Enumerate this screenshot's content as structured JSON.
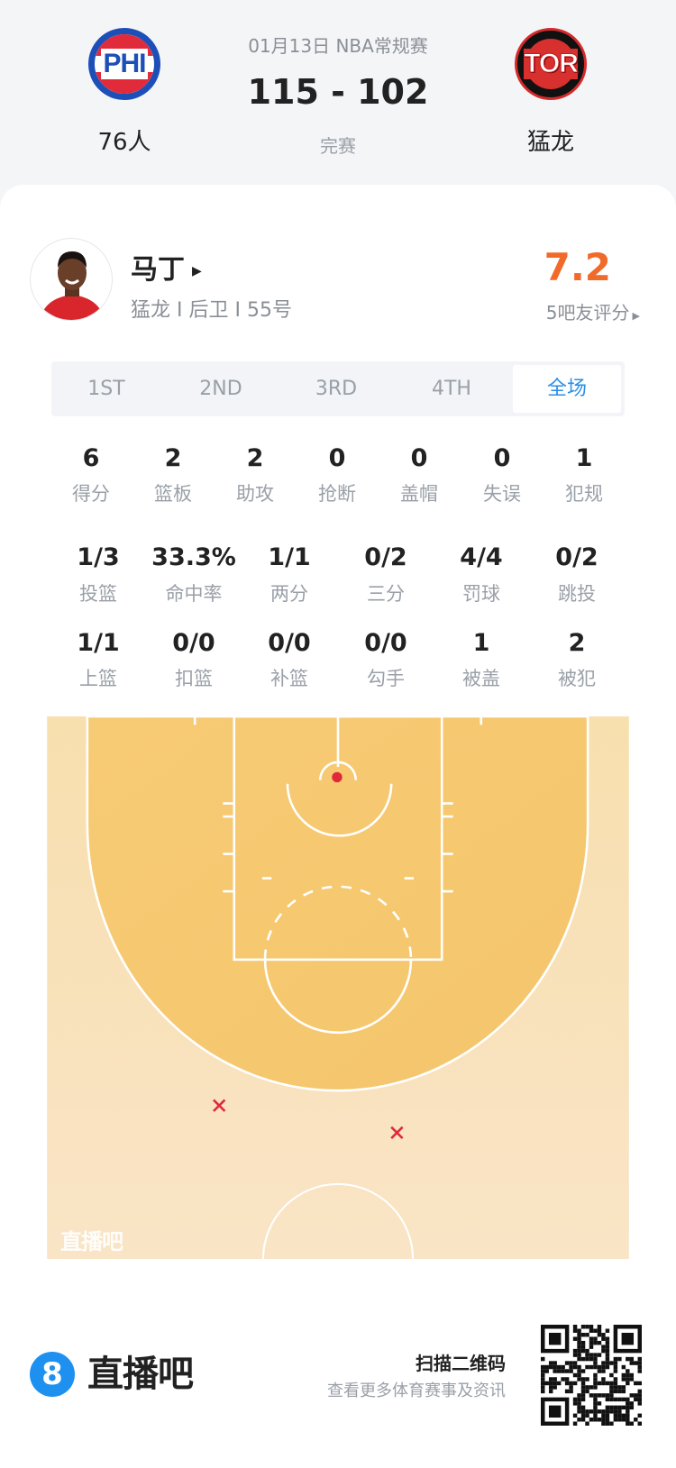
{
  "match": {
    "date_league": "01月13日 NBA常规赛",
    "score": "115 - 102",
    "status": "完赛",
    "home": {
      "abbr": "PHI",
      "name": "76人"
    },
    "away": {
      "abbr": "TOR",
      "name": "猛龙"
    }
  },
  "player": {
    "name": "马丁",
    "meta": "猛龙 I 后卫 I 55号",
    "rating": "7.2",
    "rating_label": "5吧友评分"
  },
  "colors": {
    "accent_blue": "#2b8fe6",
    "rating_orange": "#f26a2a",
    "shot_red": "#e0283a"
  },
  "tabs": [
    {
      "label": "1ST"
    },
    {
      "label": "2ND"
    },
    {
      "label": "3RD"
    },
    {
      "label": "4TH"
    },
    {
      "label": "全场",
      "active": true
    }
  ],
  "stats_row1": [
    {
      "v": "6",
      "l": "得分"
    },
    {
      "v": "2",
      "l": "篮板"
    },
    {
      "v": "2",
      "l": "助攻"
    },
    {
      "v": "0",
      "l": "抢断"
    },
    {
      "v": "0",
      "l": "盖帽"
    },
    {
      "v": "0",
      "l": "失误"
    },
    {
      "v": "1",
      "l": "犯规"
    }
  ],
  "stats_row2": [
    {
      "v": "1/3",
      "l": "投篮"
    },
    {
      "v": "33.3%",
      "l": "命中率"
    },
    {
      "v": "1/1",
      "l": "两分"
    },
    {
      "v": "0/2",
      "l": "三分"
    },
    {
      "v": "4/4",
      "l": "罚球"
    },
    {
      "v": "0/2",
      "l": "跳投"
    }
  ],
  "stats_row3": [
    {
      "v": "1/1",
      "l": "上篮"
    },
    {
      "v": "0/0",
      "l": "扣篮"
    },
    {
      "v": "0/0",
      "l": "补篮"
    },
    {
      "v": "0/0",
      "l": "勾手"
    },
    {
      "v": "1",
      "l": "被盖"
    },
    {
      "v": "2",
      "l": "被犯"
    }
  ],
  "shot_chart": {
    "made": 1,
    "missed": 2,
    "watermark": "直播吧"
  },
  "footer": {
    "brand": "直播吧",
    "brand_icon": "8",
    "scan_title": "扫描二维码",
    "scan_sub": "查看更多体育赛事及资讯"
  }
}
